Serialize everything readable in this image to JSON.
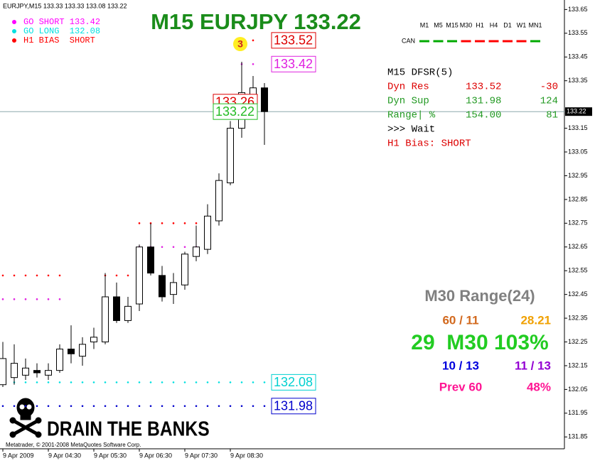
{
  "chart_data": {
    "type": "candlestick",
    "header": "EURJPY,M15  133.33 133.33 133.08 133.22",
    "title": "M15 EURJPY 133.22",
    "title_color": "#1a8c1a",
    "legend": [
      {
        "text": "GO SHORT 133.42",
        "color": "#ff00ff"
      },
      {
        "text": "GO LONG  132.08",
        "color": "#00e0e0"
      },
      {
        "text": "H1 BIAS  SHORT",
        "color": "#ff0000"
      }
    ],
    "signal_count": "3",
    "x": [
      "9 Apr 2009",
      null,
      null,
      null,
      "9 Apr 04:30",
      null,
      null,
      null,
      "9 Apr 05:30",
      null,
      null,
      null,
      "9 Apr 06:30",
      null,
      null,
      null,
      "9 Apr 07:30",
      null,
      null,
      null,
      "9 Apr 08:30",
      null,
      null,
      null
    ],
    "open": [
      132.07,
      132.1,
      132.11,
      132.13,
      132.11,
      132.13,
      132.22,
      132.19,
      132.25,
      132.25,
      132.44,
      132.34,
      132.41,
      132.65,
      132.53,
      132.45,
      132.49,
      132.61,
      132.64,
      132.76,
      132.92,
      133.15,
      133.29,
      133.32
    ],
    "high": [
      132.25,
      132.24,
      132.18,
      132.16,
      132.16,
      132.24,
      132.32,
      132.27,
      132.31,
      132.54,
      132.5,
      132.44,
      132.66,
      132.75,
      132.57,
      132.54,
      132.63,
      132.74,
      132.83,
      132.96,
      133.18,
      133.43,
      133.37,
      133.34
    ],
    "low": [
      132.06,
      132.07,
      132.09,
      132.1,
      132.09,
      132.12,
      132.16,
      132.15,
      132.22,
      132.24,
      132.33,
      132.33,
      132.38,
      132.53,
      132.42,
      132.41,
      132.47,
      132.59,
      132.62,
      132.74,
      132.91,
      133.11,
      133.27,
      133.08
    ],
    "close": [
      132.18,
      132.16,
      132.14,
      132.12,
      132.13,
      132.22,
      132.2,
      132.24,
      132.27,
      132.44,
      132.34,
      132.4,
      132.65,
      132.54,
      132.44,
      132.5,
      132.62,
      132.65,
      132.78,
      132.93,
      133.15,
      133.3,
      133.32,
      133.22
    ],
    "levels": [
      {
        "color": "#ff0000",
        "values": [
          132.53,
          132.53,
          132.53,
          132.53,
          132.53,
          132.53,
          null,
          null,
          null,
          132.53,
          132.53,
          132.53,
          132.75,
          132.75,
          132.75,
          132.75,
          132.75,
          132.75,
          null,
          null,
          null,
          133.52,
          133.52,
          null
        ]
      },
      {
        "color": "#e020e0",
        "values": [
          132.43,
          132.43,
          132.43,
          132.43,
          132.43,
          132.43,
          null,
          null,
          null,
          null,
          null,
          null,
          132.65,
          132.65,
          132.65,
          132.65,
          132.65,
          132.65,
          null,
          null,
          null,
          133.42,
          133.42,
          null
        ]
      },
      {
        "color": "#00e0e0",
        "values": [
          132.08,
          132.08,
          132.08,
          132.08,
          132.08,
          132.08,
          132.08,
          132.08,
          132.08,
          132.08,
          132.08,
          132.08,
          132.08,
          132.08,
          132.08,
          132.08,
          132.08,
          132.08,
          132.08,
          132.08,
          132.08,
          132.08,
          132.08,
          132.08
        ]
      },
      {
        "color": "#0000cc",
        "values": [
          131.98,
          131.98,
          131.98,
          131.98,
          131.98,
          131.98,
          131.98,
          131.98,
          131.98,
          131.98,
          131.98,
          131.98,
          131.98,
          131.98,
          131.98,
          131.98,
          131.98,
          131.98,
          131.98,
          131.98,
          131.98,
          131.98,
          131.98,
          131.98
        ]
      }
    ],
    "price_labels": [
      {
        "value": 133.52,
        "color": "#dd0000"
      },
      {
        "value": 133.42,
        "color": "#e020e0"
      },
      {
        "value": 133.26,
        "color": "#dd0000"
      },
      {
        "value": 133.22,
        "color": "#22bb22"
      },
      {
        "value": 132.08,
        "color": "#00d0d0"
      },
      {
        "value": 131.98,
        "color": "#0000cc"
      }
    ],
    "bid": {
      "value": 133.22,
      "label": "133.22"
    },
    "ylim": [
      131.8,
      133.69
    ],
    "yticks": [
      133.65,
      133.55,
      133.45,
      133.35,
      133.15,
      133.05,
      132.95,
      132.85,
      132.75,
      132.65,
      132.55,
      132.45,
      132.35,
      132.25,
      132.15,
      132.05,
      131.95,
      131.85
    ],
    "timeframes": [
      "M1",
      "M5",
      "M15",
      "M30",
      "H1",
      "H4",
      "D1",
      "W1",
      "MN1"
    ],
    "trend_label": "CAN",
    "trend_colors": [
      "#00aa00",
      "#00aa00",
      "#00aa00",
      "#ff0000",
      "#ff0000",
      "#ff0000",
      "#ff0000",
      "#ff0000",
      "#00aa00"
    ],
    "dfsr": [
      {
        "color": "#000000",
        "cells": [
          "M15 DFSR(5)"
        ]
      },
      {
        "color": "#dd0000",
        "cells": [
          "Dyn Res",
          "133.52",
          "-30"
        ]
      },
      {
        "color": "#229922",
        "cells": [
          "Dyn Sup",
          "131.98",
          "124"
        ]
      },
      {
        "color": "#229922",
        "cells": [
          "Range| %",
          "154.00",
          "81"
        ]
      },
      {
        "color": "#000000",
        "cells": [
          ">>> Wait"
        ]
      },
      {
        "color": "#dd0000",
        "cells": [
          "H1 Bias: SHORT"
        ]
      }
    ],
    "range_panel": [
      {
        "size": 22,
        "cells": [
          {
            "text": "M30 Range(24)",
            "color": "#808080"
          }
        ]
      },
      {
        "size": 17,
        "cells": [
          {
            "text": "60 / 11",
            "color": "#d2691e"
          },
          {
            "text": "28.21",
            "color": "#f0a000"
          }
        ]
      },
      {
        "size": 30,
        "cells": [
          {
            "text": "29  M30 103%",
            "color": "#22cc22"
          }
        ]
      },
      {
        "size": 17,
        "cells": [
          {
            "text": "10 / 13",
            "color": "#0000dd"
          },
          {
            "text": "11 / 13",
            "color": "#9400d3"
          }
        ]
      },
      {
        "size": 17,
        "cells": [
          {
            "text": "Prev 60",
            "color": "#ff1493"
          },
          {
            "text": "48%",
            "color": "#ff1493"
          }
        ]
      }
    ],
    "watermark": "DRAIN THE BANKS",
    "footer": "Metatrader, © 2001-2008 MetaQuotes Software Corp."
  }
}
